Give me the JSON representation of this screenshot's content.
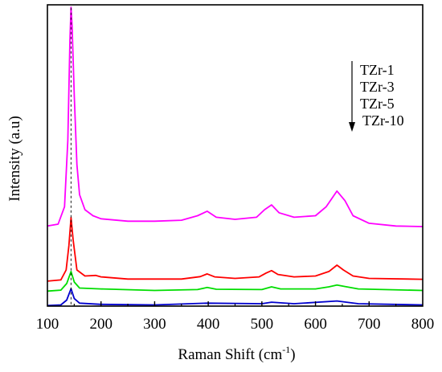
{
  "chart_data": {
    "type": "line",
    "title": "",
    "xlabel": "Raman Shift (cm",
    "xlabel_sup": "-1",
    "xlabel_end": ")",
    "ylabel": "Intensity (a.u)",
    "xlim": [
      100,
      800
    ],
    "ylim": [
      0,
      1
    ],
    "y_ticks_shown": false,
    "x_ticks": [
      "100",
      "200",
      "300",
      "400",
      "500",
      "600",
      "700",
      "800"
    ],
    "grid": false,
    "legend_position": "top-right",
    "legend_arrow": "down",
    "reference_line": {
      "x": 144,
      "style": "dashed"
    },
    "series": [
      {
        "name": "TZr-1",
        "color": "#ff00ff",
        "baseline": 0.266,
        "points": [
          [
            100,
            0.266
          ],
          [
            120,
            0.272
          ],
          [
            132,
            0.33
          ],
          [
            138,
            0.55
          ],
          [
            142,
            0.88
          ],
          [
            144,
            0.992
          ],
          [
            146,
            0.93
          ],
          [
            150,
            0.7
          ],
          [
            155,
            0.47
          ],
          [
            160,
            0.37
          ],
          [
            170,
            0.32
          ],
          [
            185,
            0.3
          ],
          [
            200,
            0.29
          ],
          [
            250,
            0.282
          ],
          [
            300,
            0.282
          ],
          [
            350,
            0.285
          ],
          [
            380,
            0.3
          ],
          [
            398,
            0.315
          ],
          [
            415,
            0.295
          ],
          [
            450,
            0.288
          ],
          [
            490,
            0.295
          ],
          [
            505,
            0.32
          ],
          [
            518,
            0.336
          ],
          [
            532,
            0.31
          ],
          [
            560,
            0.295
          ],
          [
            600,
            0.3
          ],
          [
            620,
            0.33
          ],
          [
            640,
            0.382
          ],
          [
            655,
            0.35
          ],
          [
            670,
            0.3
          ],
          [
            700,
            0.275
          ],
          [
            750,
            0.266
          ],
          [
            800,
            0.264
          ]
        ]
      },
      {
        "name": "TZr-3",
        "color": "#ff0000",
        "baseline": 0.083,
        "points": [
          [
            100,
            0.083
          ],
          [
            125,
            0.087
          ],
          [
            135,
            0.12
          ],
          [
            140,
            0.2
          ],
          [
            144,
            0.294
          ],
          [
            148,
            0.22
          ],
          [
            155,
            0.12
          ],
          [
            170,
            0.1
          ],
          [
            190,
            0.102
          ],
          [
            200,
            0.097
          ],
          [
            250,
            0.09
          ],
          [
            350,
            0.09
          ],
          [
            385,
            0.098
          ],
          [
            398,
            0.107
          ],
          [
            412,
            0.097
          ],
          [
            450,
            0.092
          ],
          [
            495,
            0.097
          ],
          [
            508,
            0.11
          ],
          [
            518,
            0.118
          ],
          [
            530,
            0.105
          ],
          [
            560,
            0.097
          ],
          [
            600,
            0.1
          ],
          [
            625,
            0.115
          ],
          [
            640,
            0.136
          ],
          [
            652,
            0.12
          ],
          [
            670,
            0.1
          ],
          [
            700,
            0.092
          ],
          [
            800,
            0.089
          ]
        ]
      },
      {
        "name": "TZr-5",
        "color": "#00dd00",
        "baseline": 0.05,
        "points": [
          [
            100,
            0.05
          ],
          [
            125,
            0.053
          ],
          [
            136,
            0.075
          ],
          [
            144,
            0.115
          ],
          [
            150,
            0.08
          ],
          [
            160,
            0.06
          ],
          [
            200,
            0.057
          ],
          [
            300,
            0.052
          ],
          [
            380,
            0.055
          ],
          [
            398,
            0.062
          ],
          [
            415,
            0.056
          ],
          [
            500,
            0.055
          ],
          [
            518,
            0.064
          ],
          [
            535,
            0.057
          ],
          [
            600,
            0.057
          ],
          [
            625,
            0.064
          ],
          [
            640,
            0.07
          ],
          [
            655,
            0.065
          ],
          [
            680,
            0.057
          ],
          [
            800,
            0.052
          ]
        ]
      },
      {
        "name": "TZr-10",
        "color": "#0000cc",
        "baseline": 0.002,
        "points": [
          [
            100,
            0.002
          ],
          [
            125,
            0.004
          ],
          [
            136,
            0.02
          ],
          [
            144,
            0.058
          ],
          [
            150,
            0.025
          ],
          [
            160,
            0.01
          ],
          [
            200,
            0.006
          ],
          [
            300,
            0.004
          ],
          [
            398,
            0.01
          ],
          [
            500,
            0.008
          ],
          [
            518,
            0.013
          ],
          [
            560,
            0.008
          ],
          [
            640,
            0.017
          ],
          [
            680,
            0.008
          ],
          [
            800,
            0.004
          ]
        ]
      }
    ]
  }
}
